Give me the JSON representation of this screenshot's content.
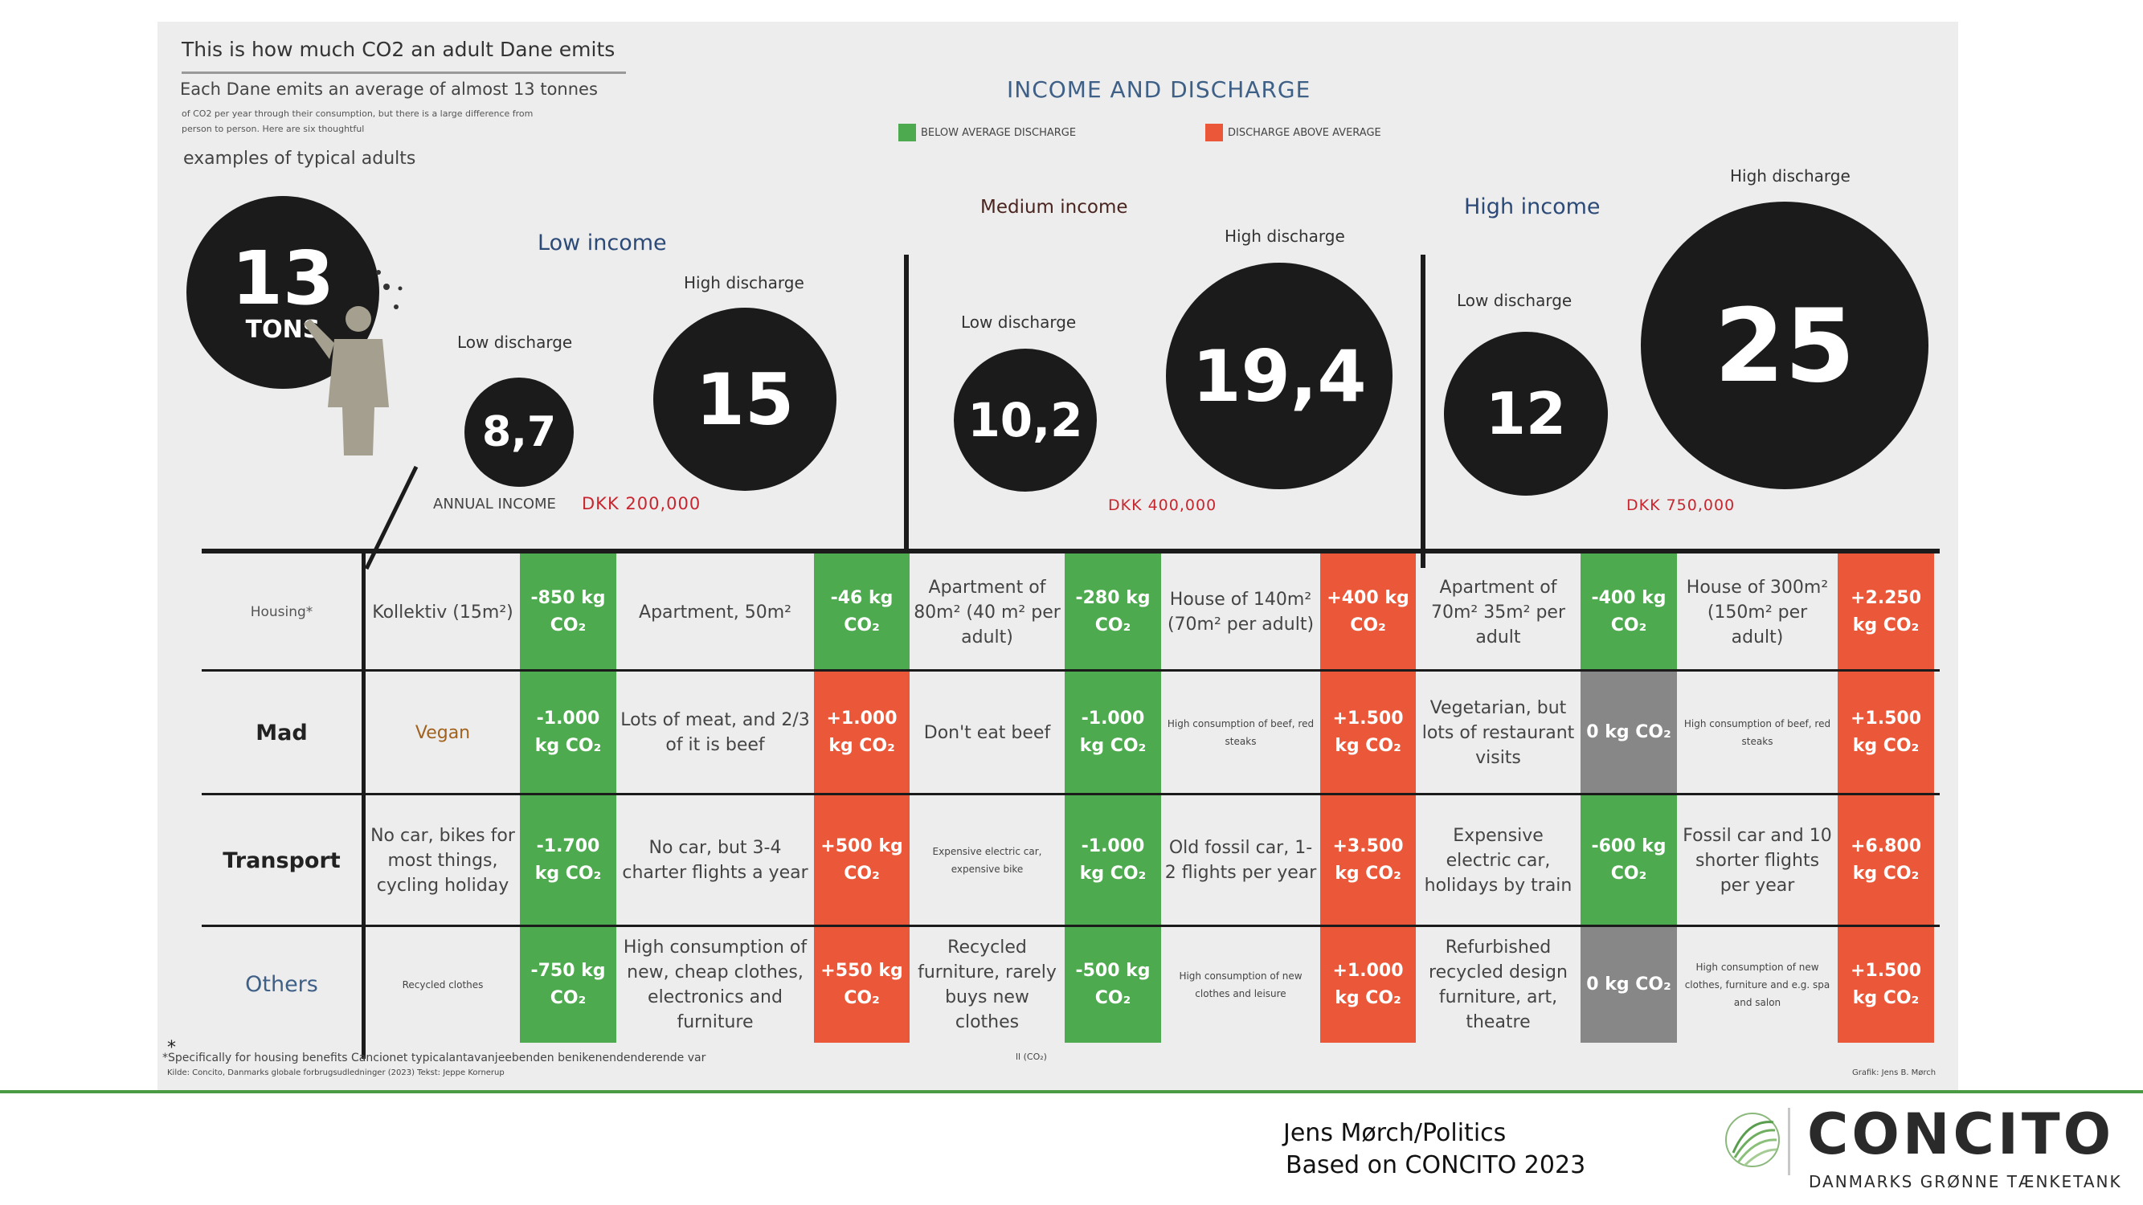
{
  "infographic": {
    "title": "This is how much CO2 an adult Dane emits",
    "subtitle": "Each Dane emits an average of almost 13 tonnes",
    "small_text": "of CO2 per year through their consumption, but there is a large difference from person to person. Here are six thoughtful",
    "examples": "examples of typical adults",
    "heading": "INCOME AND DISCHARGE",
    "legend": {
      "below": "BELOW AVERAGE DISCHARGE",
      "above": "DISCHARGE ABOVE AVERAGE",
      "below_color": "#4eaa4f",
      "above_color": "#ea5839"
    },
    "average": {
      "value": "13",
      "unit": "TONS"
    },
    "groups": {
      "low": {
        "label": "Low income",
        "low_label": "Low discharge",
        "low_value": "8,7",
        "high_label": "High discharge",
        "high_value": "15",
        "annual_income_label": "ANNUAL INCOME",
        "dkk": "DKK 200,000"
      },
      "medium": {
        "label": "Medium income",
        "low_label": "Low discharge",
        "low_value": "10,2",
        "high_label": "High discharge",
        "high_value": "19,4",
        "dkk": "DKK 400,000"
      },
      "high": {
        "label": "High income",
        "low_label": "Low discharge",
        "low_value": "12",
        "high_label": "High discharge",
        "high_value": "25",
        "dkk": "DKK 750,000"
      }
    },
    "rows": [
      {
        "label": "Housing*",
        "cells": [
          {
            "desc": "Kollektiv (15m²)",
            "value": "-850 kg CO₂"
          },
          {
            "desc": "Apartment, 50m²",
            "value": "-46 kg CO₂"
          },
          {
            "desc": "Apartment of 80m² (40 m² per adult)",
            "value": "-280 kg CO₂"
          },
          {
            "desc": "House of 140m² (70m² per adult)",
            "value": "+400 kg CO₂"
          },
          {
            "desc": "Apartment of 70m² 35m² per adult",
            "value": "-400 kg CO₂"
          },
          {
            "desc": "House of 300m² (150m² per adult)",
            "value": "+2.250 kg CO₂"
          }
        ]
      },
      {
        "label": "Mad",
        "cells": [
          {
            "desc": "Vegan",
            "value": "-1.000 kg CO₂"
          },
          {
            "desc": "Lots of meat, and 2/3 of it is beef",
            "value": "+1.000 kg CO₂"
          },
          {
            "desc": "Don't eat beef",
            "value": "-1.000 kg CO₂"
          },
          {
            "desc": "High consumption of beef, red steaks",
            "value": "+1.500 kg CO₂"
          },
          {
            "desc": "Vegetarian, but lots of restaurant visits",
            "value": "0 kg CO₂"
          },
          {
            "desc": "High consumption of beef, red steaks",
            "value": "+1.500 kg CO₂"
          }
        ]
      },
      {
        "label": "Transport",
        "cells": [
          {
            "desc": "No car, bikes for most things, cycling holiday",
            "value": "-1.700 kg CO₂"
          },
          {
            "desc": "No car, but 3-4 charter flights a year",
            "value": "+500 kg CO₂"
          },
          {
            "desc": "Expensive electric car, expensive bike",
            "value": "-1.000 kg CO₂"
          },
          {
            "desc": "Old fossil car, 1-2 flights per year",
            "value": "+3.500 kg CO₂"
          },
          {
            "desc": "Expensive electric car, holidays by train",
            "value": "-600 kg CO₂"
          },
          {
            "desc": "Fossil car and 10 shorter flights per year",
            "value": "+6.800 kg CO₂"
          }
        ]
      },
      {
        "label": "Others",
        "cells": [
          {
            "desc": "Recycled clothes",
            "value": "-750 kg CO₂"
          },
          {
            "desc": "High consumption of new, cheap clothes, electronics and furniture",
            "value": "+550 kg CO₂"
          },
          {
            "desc": "Recycled furniture, rarely buys new clothes",
            "value": "-500 kg CO₂"
          },
          {
            "desc": "High consumption of new clothes and leisure",
            "value": "+1.000 kg CO₂"
          },
          {
            "desc": "Refurbished recycled design furniture, art, theatre",
            "value": "0 kg CO₂"
          },
          {
            "desc": "High consumption of new clothes, furniture and e.g. spa and salon",
            "value": "+1.500 kg CO₂"
          }
        ]
      }
    ],
    "footnote_star": "*",
    "footnote": "*Specifically for housing benefits Cancionet typicalantavanjeebenden benikenendenderende var",
    "source_line": "Kilde: Concito, Danmarks globale forbrugsudledninger (2023)   Tekst: Jeppe Kornerup",
    "unit_note": "ll (CO₂)",
    "graphic_credit": "Grafik: Jens B. Mørch"
  },
  "footer": {
    "author": "Jens Mørch/Politics",
    "based_on": "Based on CONCITO 2023",
    "logo_text": "CONCITO",
    "logo_tagline": "DANMARKS GRØNNE TÆNKETANK",
    "line_color": "#4a9a43"
  }
}
